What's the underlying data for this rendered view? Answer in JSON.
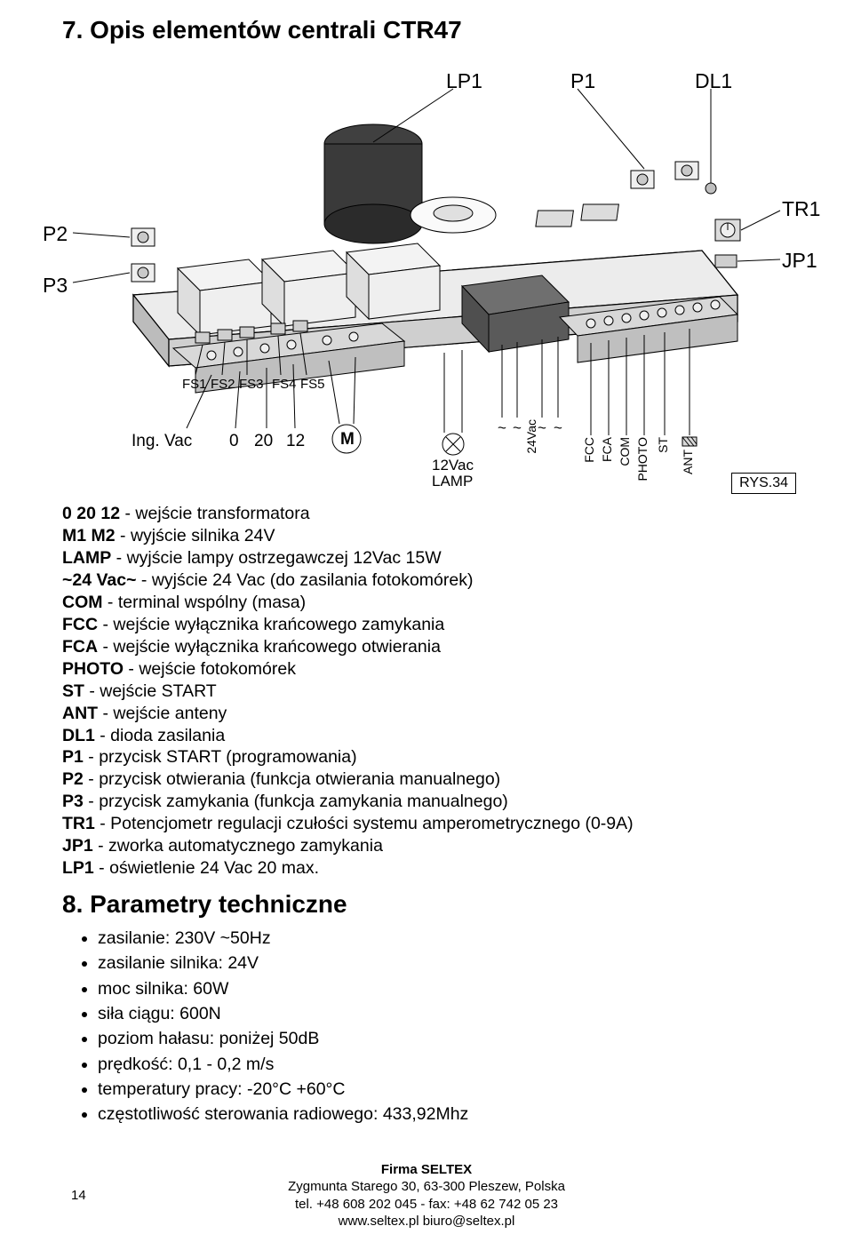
{
  "section7": {
    "title": "7. Opis elementów centrali CTR47",
    "rys": "RYS.34",
    "lines": [
      {
        "b": "0 20 12",
        "t": " - wejście transformatora"
      },
      {
        "b": "M1 M2",
        "t": " - wyjście silnika 24V"
      },
      {
        "b": "LAMP",
        "t": " - wyjście lampy ostrzegawczej 12Vac 15W"
      },
      {
        "b": "~24 Vac~",
        "t": " - wyjście 24 Vac (do zasilania fotokomórek)"
      },
      {
        "b": "COM",
        "t": " - terminal wspólny (masa)"
      },
      {
        "b": "FCC",
        "t": " - wejście wyłącznika krańcowego zamykania"
      },
      {
        "b": "FCA",
        "t": " - wejście wyłącznika krańcowego otwierania"
      },
      {
        "b": "PHOTO",
        "t": " - wejście fotokomórek"
      },
      {
        "b": "ST",
        "t": " - wejście START"
      },
      {
        "b": "ANT",
        "t": " - wejście anteny"
      },
      {
        "b": "DL1",
        "t": " - dioda zasilania"
      },
      {
        "b": "P1",
        "t": " - przycisk START (programowania)"
      },
      {
        "b": "P2",
        "t": " - przycisk otwierania (funkcja otwierania manualnego)"
      },
      {
        "b": "P3",
        "t": " - przycisk zamykania (funkcja zamykania manualnego)"
      },
      {
        "b": "TR1",
        "t": " - Potencjometr regulacji czułości systemu amperometrycznego (0-9A)"
      },
      {
        "b": "JP1",
        "t": " - zworka automatycznego zamykania"
      },
      {
        "b": "LP1",
        "t": " - oświetlenie 24 Vac 20 max."
      }
    ]
  },
  "section8": {
    "title": "8. Parametry techniczne",
    "items": [
      "zasilanie: 230V ~50Hz",
      "zasilanie silnika: 24V",
      "moc silnika: 60W",
      "siła ciągu: 600N",
      "poziom hałasu: poniżej 50dB",
      "prędkość: 0,1 - 0,2 m/s",
      "temperatury pracy: -20°C +60°C",
      "częstotliwość sterowania radiowego: 433,92Mhz"
    ]
  },
  "footer": {
    "firm": "Firma SELTEX",
    "addr": "Zygmunta Starego 30, 63-300 Pleszew, Polska",
    "tel": "tel. +48 608 202 045  -  fax: +48 62 742 05 23",
    "web": "www.seltex.pl    biuro@seltex.pl",
    "page": "14"
  },
  "diagram": {
    "board": {
      "fill": "#e8e8e8",
      "stroke": "#000000"
    },
    "callout_labels_top": {
      "LP1": "LP1",
      "P1": "P1",
      "DL1": "DL1"
    },
    "callout_labels_left": {
      "P2": "P2",
      "P3": "P3"
    },
    "callout_labels_right": {
      "TR1": "TR1",
      "JP1": "JP1"
    },
    "fuse_labels": [
      "FS1",
      "FS2",
      "FS3",
      "FS4",
      "FS5"
    ],
    "bottom_left": [
      "Ing. Vac",
      "0",
      "20",
      "12"
    ],
    "motor": "M",
    "lamp_block": [
      "12Vac",
      "LAMP"
    ],
    "bottom_right_vert": [
      "~",
      "~",
      "24Vac",
      "~",
      "~",
      "FCC",
      "FCA",
      "COM",
      "PHOTO",
      "ST",
      "ANT"
    ],
    "colors": {
      "line": "#000000",
      "board_edge": "#6b6b6b",
      "component_light": "#f4f4f4",
      "component_dark": "#b0b0b0"
    }
  }
}
